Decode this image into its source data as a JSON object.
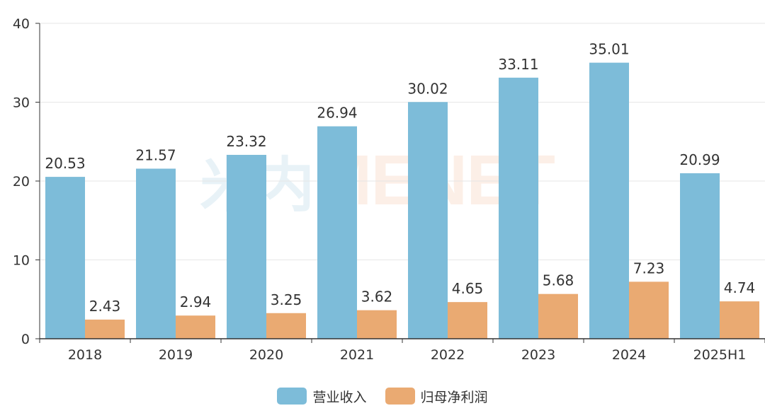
{
  "chart_data": {
    "type": "bar",
    "categories": [
      "2018",
      "2019",
      "2020",
      "2021",
      "2022",
      "2023",
      "2024",
      "2025H1"
    ],
    "series": [
      {
        "name": "营业收入",
        "color": "#7dbcd9",
        "values": [
          20.53,
          21.57,
          23.32,
          26.94,
          30.02,
          33.11,
          35.01,
          20.99
        ]
      },
      {
        "name": "归母净利润",
        "color": "#eaaa72",
        "values": [
          2.43,
          2.94,
          3.25,
          3.62,
          4.65,
          5.68,
          7.23,
          4.74
        ]
      }
    ],
    "ylim": [
      0,
      40
    ],
    "yticks": [
      0,
      10,
      20,
      30,
      40
    ],
    "grid": true,
    "legend": "bottom-center",
    "title": "",
    "xlabel": "",
    "ylabel": ""
  },
  "watermark": {
    "mark": "米内",
    "word": "MENET"
  }
}
